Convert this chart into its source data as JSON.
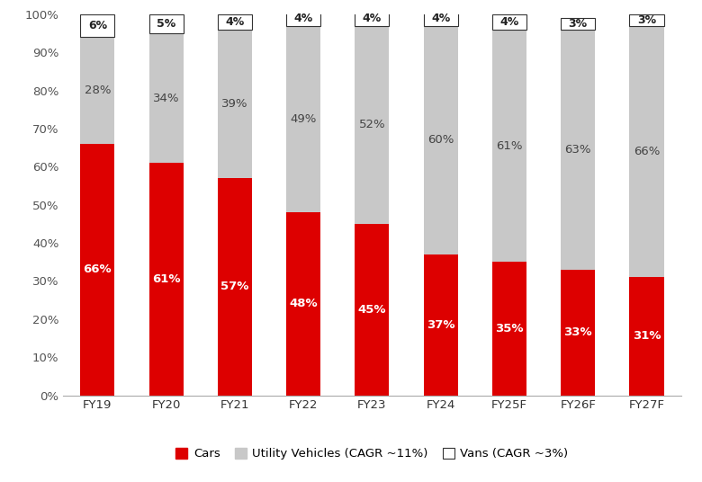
{
  "categories": [
    "FY19",
    "FY20",
    "FY21",
    "FY22",
    "FY23",
    "FY24",
    "FY25F",
    "FY26F",
    "FY27F"
  ],
  "cars": [
    66,
    61,
    57,
    48,
    45,
    37,
    35,
    33,
    31
  ],
  "utility_vehicles": [
    28,
    34,
    39,
    49,
    52,
    60,
    61,
    63,
    66
  ],
  "vans": [
    6,
    5,
    4,
    4,
    4,
    4,
    4,
    3,
    3
  ],
  "cars_color": "#dd0000",
  "uv_color": "#c8c8c8",
  "vans_color": "#ffffff",
  "vans_edgecolor": "#333333",
  "background_color": "#ffffff",
  "ylim": [
    0,
    100
  ],
  "legend_labels": [
    "Cars",
    "Utility Vehicles (CAGR ~11%)",
    "Vans (CAGR ~3%)"
  ],
  "cars_label_fontsize": 9.5,
  "uv_label_fontsize": 9.5,
  "vans_label_fontsize": 9,
  "tick_fontsize": 9.5,
  "legend_fontsize": 9.5,
  "bar_width": 0.5
}
